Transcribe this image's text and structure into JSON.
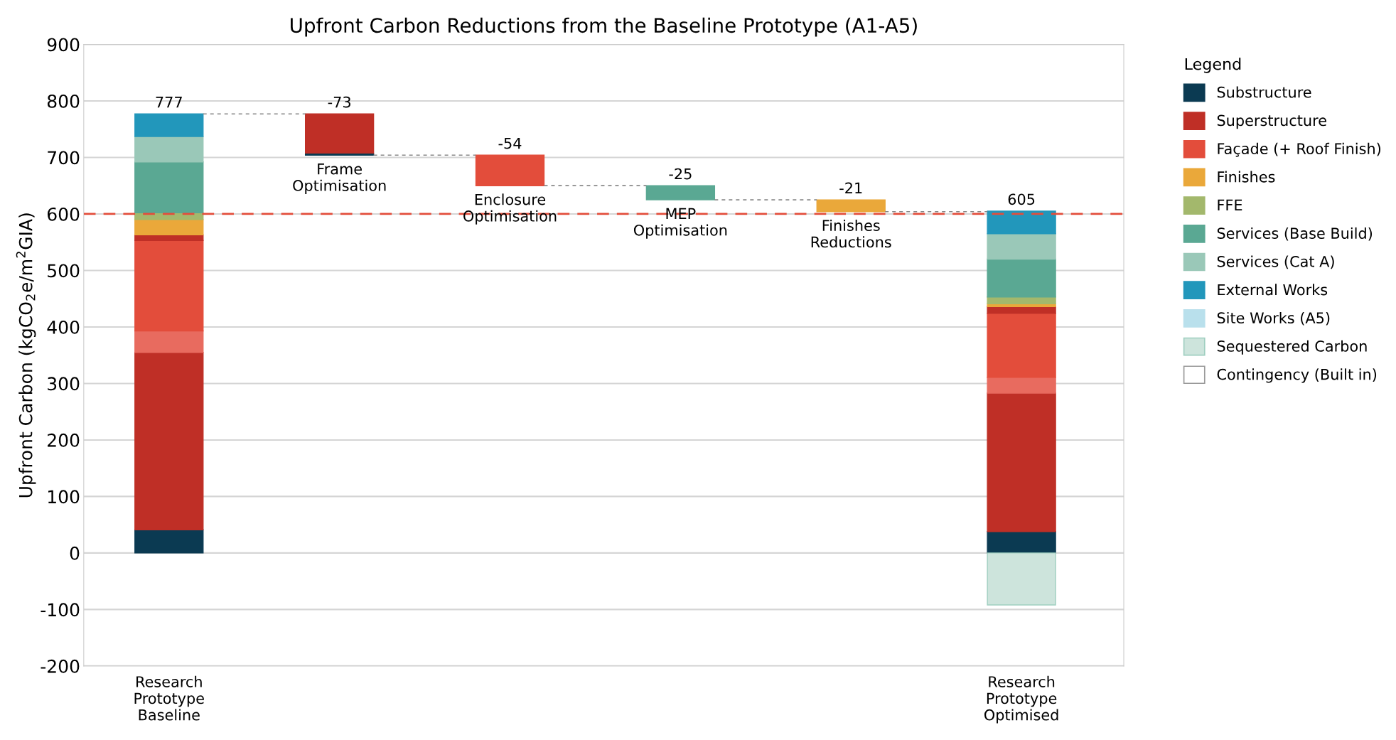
{
  "chart_data": {
    "type": "bar",
    "stacked": true,
    "title": "Upfront Carbon Reductions from the Baseline Prototype (A1-A5)",
    "ylabel": "Upfront Carbon (kgCO$_{2}$e/m$^{2}$GIA)",
    "categories": [
      "Research\nPrototype\nBaseline",
      "Frame\nOptimisation",
      "Enclosure\nOptimisation",
      "MEP\nOptimisation",
      "Finishes\nReductions",
      "Research\nPrototype\nOptimised"
    ],
    "series": [
      {
        "name": "Substructure",
        "color": "#0b3a52",
        "values": [
          41,
          null,
          null,
          null,
          null,
          38
        ]
      },
      {
        "name": "Superstructure",
        "color": "#bf2f26",
        "values": [
          314,
          -71,
          null,
          null,
          null,
          245
        ],
        "base": [
          null,
          777,
          null,
          null,
          null,
          null
        ]
      },
      {
        "color": "#0b3a52",
        "values": [
          null,
          -2,
          null,
          null,
          null,
          null
        ]
      },
      {
        "color": "#e86b5f",
        "values": [
          38,
          null,
          null,
          null,
          null,
          28
        ]
      },
      {
        "name": "Façade (+ Roof Finish)",
        "color": "#e34d3b",
        "values": [
          160,
          null,
          -54,
          null,
          null,
          113
        ],
        "base": [
          null,
          null,
          704,
          null,
          null,
          null
        ]
      },
      {
        "color": "#bf2f26",
        "values": [
          10,
          null,
          null,
          null,
          null,
          12
        ]
      },
      {
        "name": "Finishes",
        "color": "#eaa83a",
        "values": [
          27,
          null,
          null,
          null,
          -21,
          5
        ],
        "base": [
          null,
          null,
          null,
          null,
          625,
          null
        ]
      },
      {
        "name": "FFE",
        "color": "#a3b86c",
        "values": [
          12,
          null,
          null,
          null,
          null,
          12
        ]
      },
      {
        "name": "Services (Base Build)",
        "color": "#5aa893",
        "values": [
          90,
          null,
          null,
          -25,
          null,
          67
        ],
        "base": [
          null,
          null,
          null,
          650,
          null,
          null
        ]
      },
      {
        "name": "Services (Cat A)",
        "color": "#9ac8b8",
        "values": [
          45,
          null,
          null,
          null,
          null,
          45
        ]
      },
      {
        "name": "External Works",
        "color": "#2297bb",
        "values": [
          40,
          null,
          null,
          null,
          null,
          40
        ]
      },
      {
        "name": "Site Works (A5)",
        "color": "#b9e0ec",
        "values": [
          null,
          null,
          null,
          null,
          null,
          null
        ]
      },
      {
        "name": "Sequestered Carbon",
        "color": "#cde4dc",
        "values": [
          null,
          null,
          null,
          null,
          null,
          -92
        ]
      },
      {
        "name": "Contingency (Built in)",
        "color": "#ffffff",
        "values": [
          null,
          null,
          null,
          null,
          null,
          null
        ]
      }
    ],
    "totals": [
      "777",
      "-73",
      "-54",
      "-25",
      "-21",
      null
    ],
    "annotations": [
      {
        "text": "605",
        "x": "Research\nPrototype\nOptimised",
        "y": 605
      }
    ],
    "ylim": [
      -200,
      900
    ],
    "yticks": [
      -200,
      -100,
      0,
      100,
      200,
      300,
      400,
      500,
      600,
      700,
      800,
      900
    ],
    "ref_lines": [
      {
        "axis": "y",
        "value": 600,
        "color": "#e34d3b",
        "line_style": "dashed"
      }
    ],
    "grid": "y",
    "legend": "right",
    "legend_title": "Legend"
  }
}
